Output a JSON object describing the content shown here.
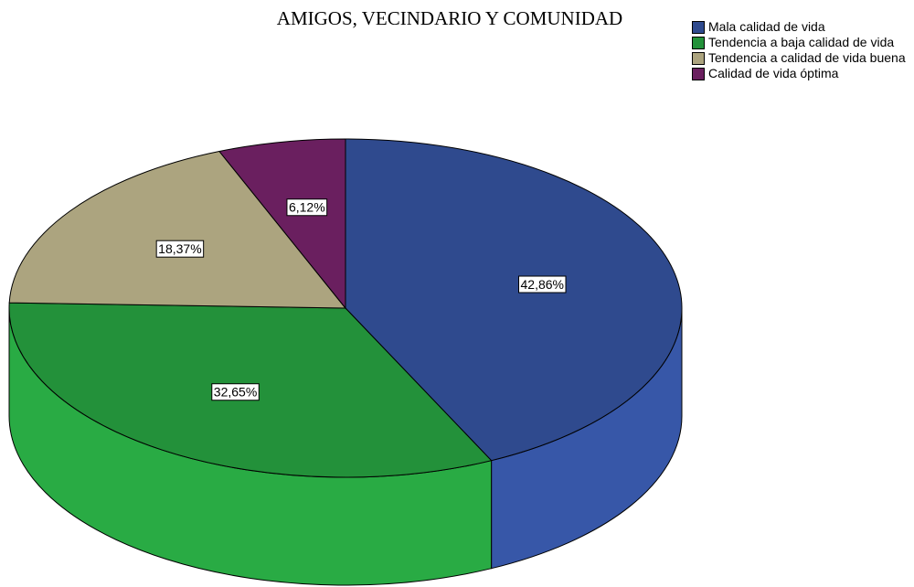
{
  "chart_data": {
    "type": "pie",
    "title": "AMIGOS, VECINDARIO Y COMUNIDAD",
    "categories": [
      "Mala calidad de vida",
      "Tendencia a baja calidad de vida",
      "Tendencia a calidad de vida buena",
      "Calidad de vida óptima"
    ],
    "values": [
      42.86,
      32.65,
      18.37,
      6.12
    ],
    "value_labels": [
      "42,86%",
      "32,65%",
      "18,37%",
      "6,12%"
    ],
    "colors": [
      "#2f4a8e",
      "#23913a",
      "#aca47f",
      "#6a1f5f"
    ],
    "legend": "top-right"
  }
}
